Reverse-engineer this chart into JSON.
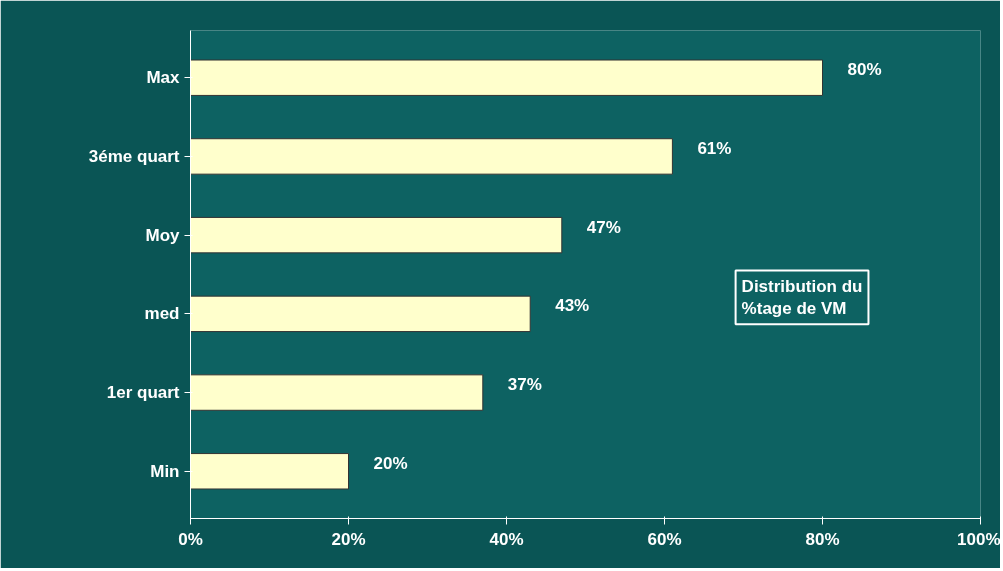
{
  "chart_data": {
    "type": "bar",
    "orientation": "horizontal",
    "categories": [
      "Max",
      "3éme quart",
      "Moy",
      "med",
      "1er quart",
      "Min"
    ],
    "values": [
      80,
      61,
      47,
      43,
      37,
      20
    ],
    "value_labels": [
      "80%",
      "61%",
      "47%",
      "43%",
      "37%",
      "20%"
    ],
    "color": "#ffffcc",
    "xlim": [
      0,
      100
    ],
    "xticks": [
      {
        "value": 0,
        "label": "0%"
      },
      {
        "value": 20,
        "label": "20%"
      },
      {
        "value": 40,
        "label": "40%"
      },
      {
        "value": 60,
        "label": "60%"
      },
      {
        "value": 80,
        "label": "80%"
      },
      {
        "value": 100,
        "label": "100%"
      }
    ],
    "annotations": [
      "Distribution du\n%tage de VM"
    ],
    "grid": false
  }
}
